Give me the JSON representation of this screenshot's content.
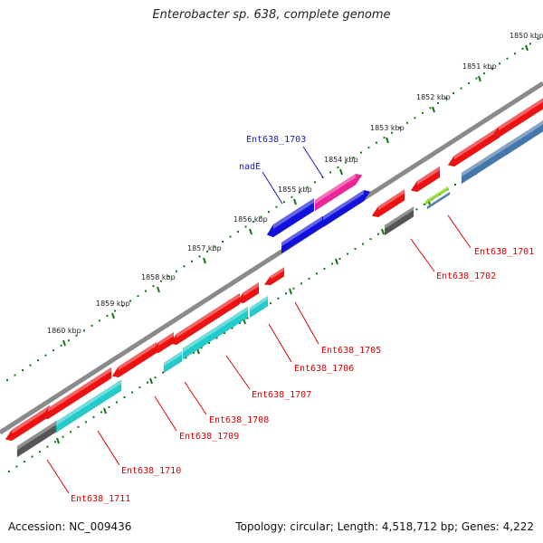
{
  "title": "Enterobacter sp. 638, complete genome",
  "footer": {
    "accession": "Accession: NC_009436",
    "summary": "Topology: circular; Length: 4,518,712 bp; Genes: 4,222"
  },
  "ruler": {
    "ticks": [
      "1850 kbp",
      "1851 kbp",
      "1852 kbp",
      "1853 kbp",
      "1854 kbp",
      "1855 kbp",
      "1856 kbp",
      "1857 kbp",
      "1858 kbp",
      "1859 kbp",
      "1860 kbp"
    ]
  },
  "features": {
    "labels": [
      {
        "text": "Ent638_1701",
        "color": "red"
      },
      {
        "text": "Ent638_1702",
        "color": "red"
      },
      {
        "text": "Ent638_1703",
        "color": "blue"
      },
      {
        "text": "nadE",
        "color": "blue"
      },
      {
        "text": "Ent638_1705",
        "color": "red"
      },
      {
        "text": "Ent638_1706",
        "color": "red"
      },
      {
        "text": "Ent638_1707",
        "color": "red"
      },
      {
        "text": "Ent638_1708",
        "color": "red"
      },
      {
        "text": "Ent638_1709",
        "color": "red"
      },
      {
        "text": "Ent638_1710",
        "color": "red"
      },
      {
        "text": "Ent638_1711",
        "color": "red"
      }
    ]
  },
  "colors": {
    "gene": "#ee1111",
    "cds": "#22cccc",
    "highlight_gene": "#1111dd",
    "misc": "#ee2299",
    "ncrna_green": "#88dd22",
    "other": "#555555",
    "blue_cds": "#4477aa",
    "backbone": "#888888",
    "dots": "#117711",
    "label_red": "#e00000",
    "label_blue": "#1a1ab0"
  }
}
